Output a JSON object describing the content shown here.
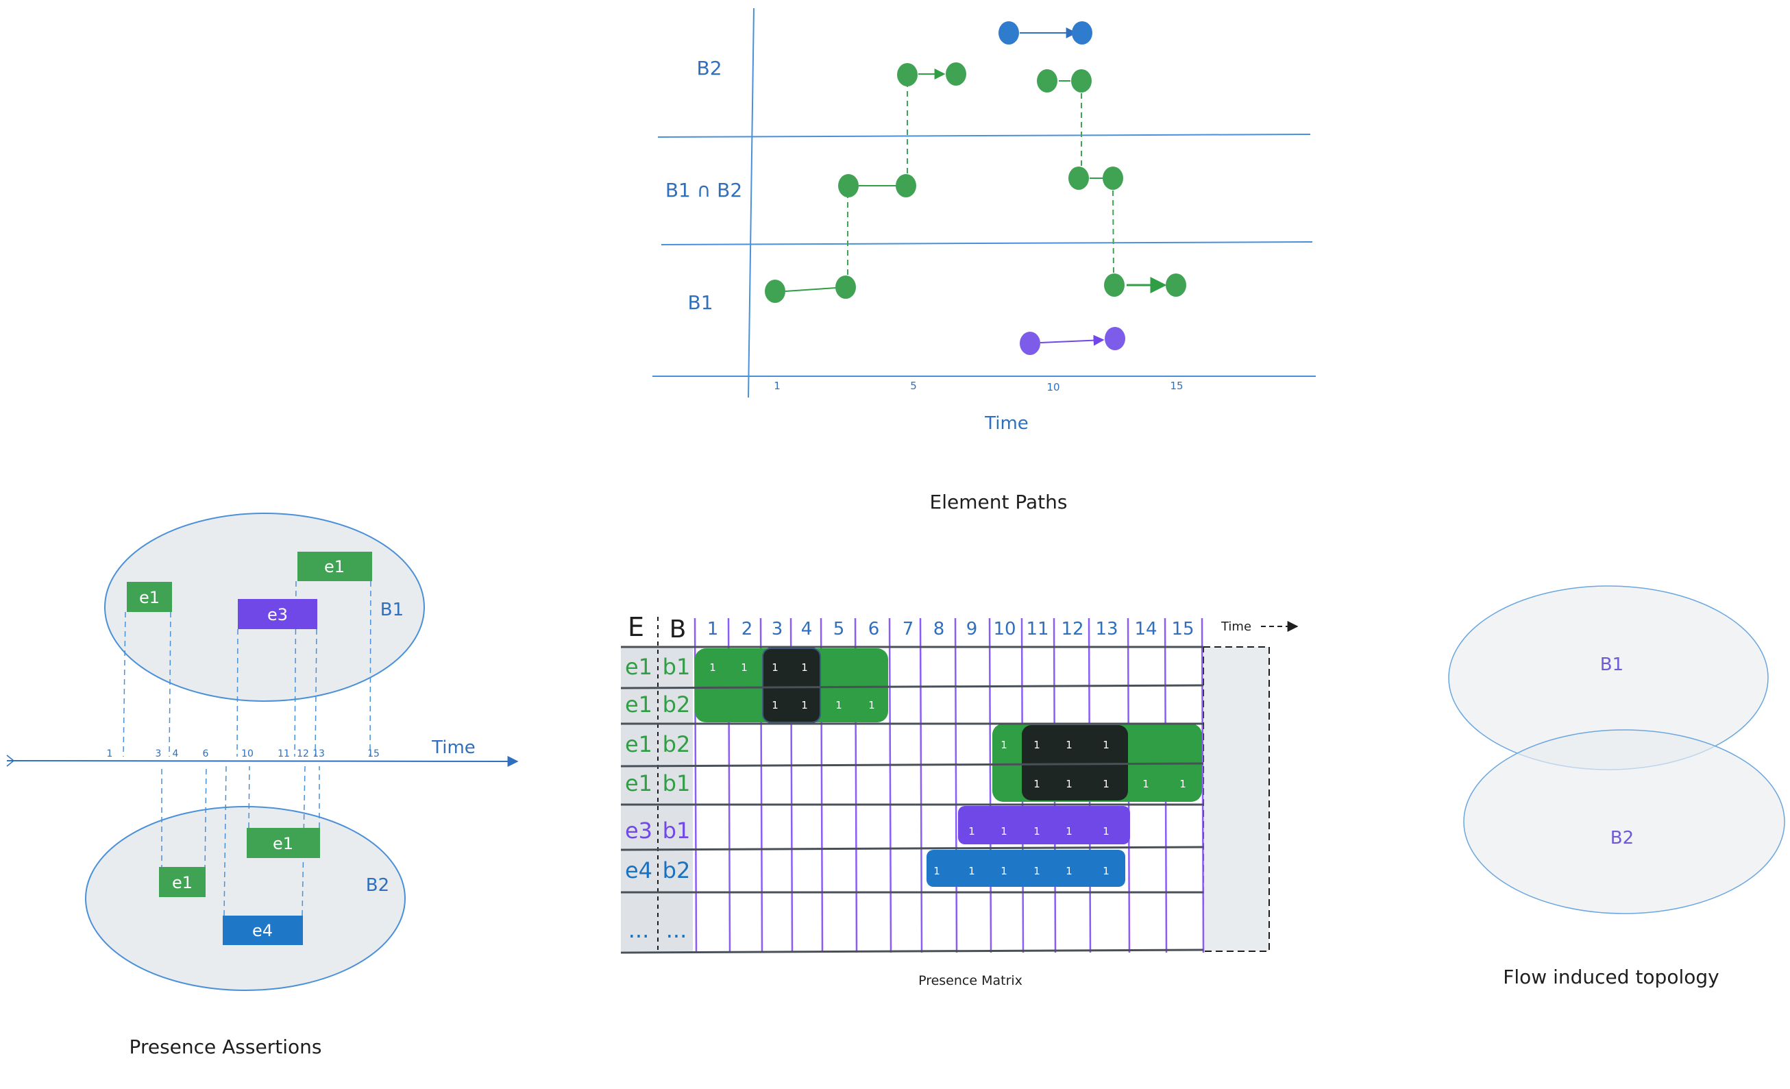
{
  "colors": {
    "blue": "#1971c2",
    "blue_text": "#2f6fbd",
    "green": "#2f9e44",
    "green_node": "#40a354",
    "purple": "#7048e8",
    "purple_light": "#9775fa",
    "black": "#1e1e1e",
    "grid_line": "#8b5cf6",
    "ellipse_fill": "#e9ecef",
    "ellipse_stroke": "#4a90d9"
  },
  "element_paths": {
    "caption": "Element Paths",
    "time_label": "Time",
    "rows": [
      "B2",
      "B1 ∩ B2",
      "B1"
    ],
    "ticks": [
      "1",
      "5",
      "10",
      "15"
    ]
  },
  "presence_assertions": {
    "caption": "Presence Assertions",
    "time_label": "Time",
    "set_top": "B1",
    "set_bottom": "B2",
    "ticks": [
      "1",
      "3",
      "4",
      "6",
      "10",
      "11",
      "12",
      "13",
      "15"
    ],
    "boxes_top": [
      "e1",
      "e3",
      "e1"
    ],
    "boxes_bottom": [
      "e1",
      "e1",
      "e4"
    ]
  },
  "presence_matrix": {
    "caption": "Presence Matrix",
    "col_e": "E",
    "col_b": "B",
    "time_label": "Time",
    "time_cols": [
      "1",
      "2",
      "3",
      "4",
      "5",
      "6",
      "7",
      "8",
      "9",
      "10",
      "11",
      "12",
      "13",
      "14",
      "15"
    ],
    "rows": [
      {
        "e": "e1",
        "b": "b1"
      },
      {
        "e": "e1",
        "b": "b2"
      },
      {
        "e": "e1",
        "b": "b2"
      },
      {
        "e": "e1",
        "b": "b1"
      },
      {
        "e": "e3",
        "b": "b1"
      },
      {
        "e": "e4",
        "b": "b2"
      },
      {
        "e": "...",
        "b": "..."
      }
    ],
    "cell_value": "1"
  },
  "flow_topology": {
    "caption": "Flow induced topology",
    "set_top": "B1",
    "set_bottom": "B2"
  }
}
